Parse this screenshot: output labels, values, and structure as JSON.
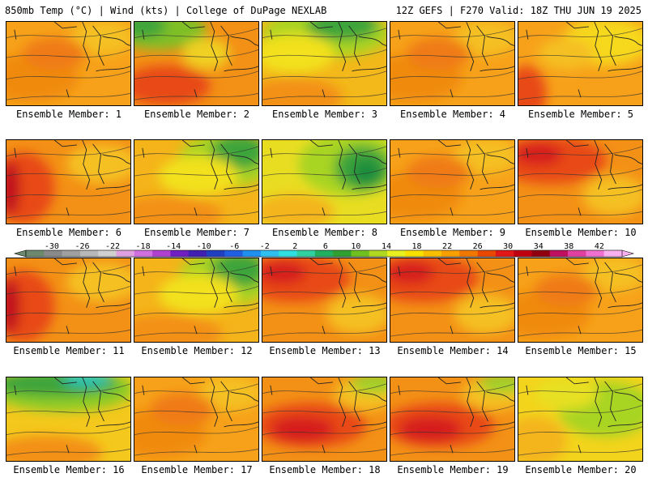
{
  "header": {
    "left": "850mb Temp (°C) | Wind (kts) | College of DuPage NEXLAB",
    "right": "12Z GEFS | F270 Valid: 18Z THU JUN 19 2025"
  },
  "members": [
    {
      "label": "Ensemble Member: 1",
      "theme": "warm"
    },
    {
      "label": "Ensemble Member: 2",
      "theme": "green-nw"
    },
    {
      "label": "Ensemble Member: 3",
      "theme": "green-n"
    },
    {
      "label": "Ensemble Member: 4",
      "theme": "warm"
    },
    {
      "label": "Ensemble Member: 5",
      "theme": "warm-yellow"
    },
    {
      "label": "Ensemble Member: 6",
      "theme": "hot-w"
    },
    {
      "label": "Ensemble Member: 7",
      "theme": "green-ne"
    },
    {
      "label": "Ensemble Member: 8",
      "theme": "green-ne-strong"
    },
    {
      "label": "Ensemble Member: 9",
      "theme": "warm"
    },
    {
      "label": "Ensemble Member: 10",
      "theme": "hot-nw"
    },
    {
      "label": "Ensemble Member: 11",
      "theme": "hot-w"
    },
    {
      "label": "Ensemble Member: 12",
      "theme": "green-ne"
    },
    {
      "label": "Ensemble Member: 13",
      "theme": "hot-nw"
    },
    {
      "label": "Ensemble Member: 14",
      "theme": "hot-nw"
    },
    {
      "label": "Ensemble Member: 15",
      "theme": "warm"
    },
    {
      "label": "Ensemble Member: 16",
      "theme": "green-n-strong"
    },
    {
      "label": "Ensemble Member: 17",
      "theme": "warm"
    },
    {
      "label": "Ensemble Member: 18",
      "theme": "hot-diag"
    },
    {
      "label": "Ensemble Member: 19",
      "theme": "hot-diag"
    },
    {
      "label": "Ensemble Member: 20",
      "theme": "yellow-green"
    }
  ],
  "colorbar": {
    "tick_labels": [
      "-30",
      "-26",
      "-22",
      "-18",
      "-14",
      "-10",
      "-6",
      "-2",
      "2",
      "6",
      "10",
      "14",
      "18",
      "22",
      "26",
      "30",
      "34",
      "38",
      "42"
    ],
    "colors": [
      "#6e8a6e",
      "#8a8a8a",
      "#a0a0a0",
      "#b8b8b8",
      "#d0d0d0",
      "#e0a0e0",
      "#d070e0",
      "#b040d0",
      "#7020c0",
      "#4020b0",
      "#2040c0",
      "#2060e0",
      "#2090f0",
      "#30c0f0",
      "#30e0e0",
      "#30d0a0",
      "#20b060",
      "#30a030",
      "#70c020",
      "#b0d820",
      "#e8f020",
      "#f8e000",
      "#f8c000",
      "#f8a000",
      "#f07800",
      "#e84800",
      "#e01818",
      "#c00010",
      "#900010",
      "#c01060",
      "#e040a0",
      "#f070d0",
      "#f8b0f0"
    ]
  }
}
